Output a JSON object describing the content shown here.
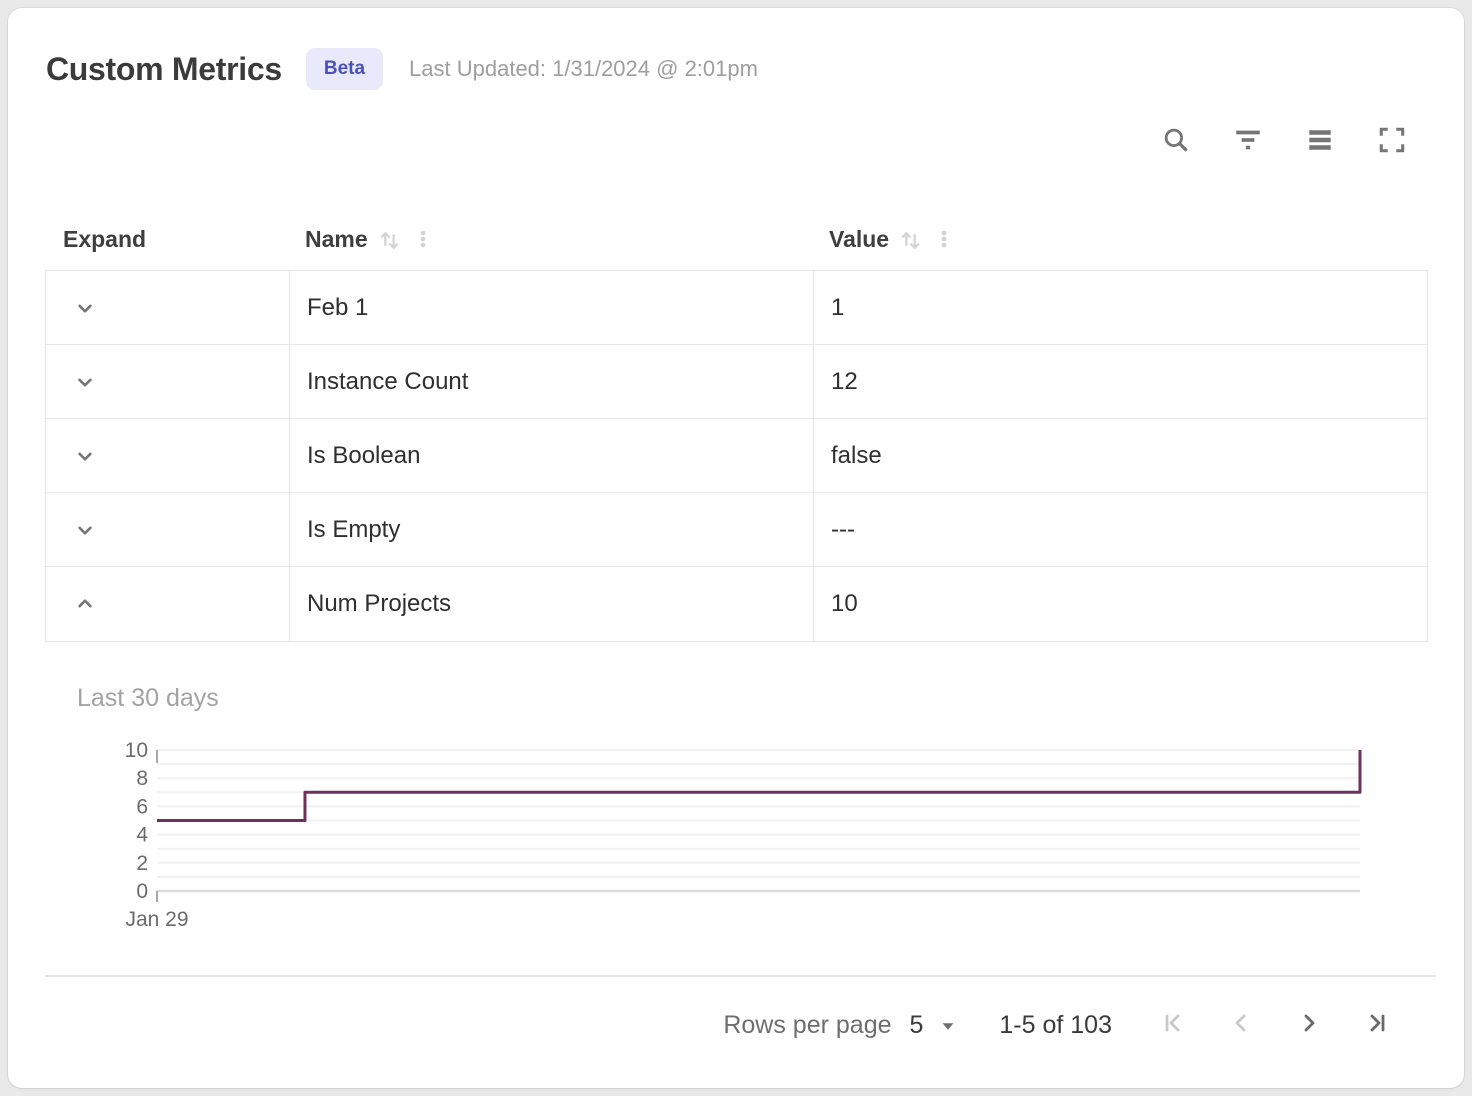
{
  "header": {
    "title": "Custom Metrics",
    "badge": "Beta",
    "last_updated": "Last Updated: 1/31/2024 @ 2:01pm"
  },
  "toolbar": {
    "icons": [
      "search",
      "filter",
      "density",
      "fullscreen"
    ]
  },
  "table": {
    "columns": [
      {
        "label": "Expand",
        "sortable": false
      },
      {
        "label": "Name",
        "sortable": true
      },
      {
        "label": "Value",
        "sortable": true
      }
    ],
    "rows": [
      {
        "name": "Feb 1",
        "value": "1",
        "expanded": false
      },
      {
        "name": "Instance Count",
        "value": "12",
        "expanded": false
      },
      {
        "name": "Is Boolean",
        "value": "false",
        "expanded": false
      },
      {
        "name": "Is Empty",
        "value": "---",
        "expanded": false
      },
      {
        "name": "Num Projects",
        "value": "10",
        "expanded": true
      }
    ]
  },
  "chart_data": {
    "type": "line",
    "title": "Last 30 days",
    "step": "before",
    "points": [
      {
        "x": 0,
        "y": 5
      },
      {
        "x": 0.123,
        "y": 7
      },
      {
        "x": 1,
        "y": 10
      }
    ],
    "ylim": [
      0,
      10
    ],
    "y_ticks": [
      0,
      2,
      4,
      6,
      8,
      10
    ],
    "x_tick_labels": [
      "Jan 29"
    ],
    "grid": "horizontal",
    "line_color": "#6e3060",
    "axis_color": "#6b6b6b"
  },
  "pagination": {
    "rows_per_page_label": "Rows per page",
    "rows_per_page_value": "5",
    "range_label": "1-5 of 103",
    "first_disabled": true,
    "prev_disabled": true,
    "next_disabled": false,
    "last_disabled": false
  },
  "colors": {
    "accent": "#4a51b8",
    "badge_bg": "#e8eafb",
    "line": "#6e3060",
    "border": "#e3e3e3",
    "icon": "#757575",
    "icon_disabled": "#c9c9c9"
  }
}
